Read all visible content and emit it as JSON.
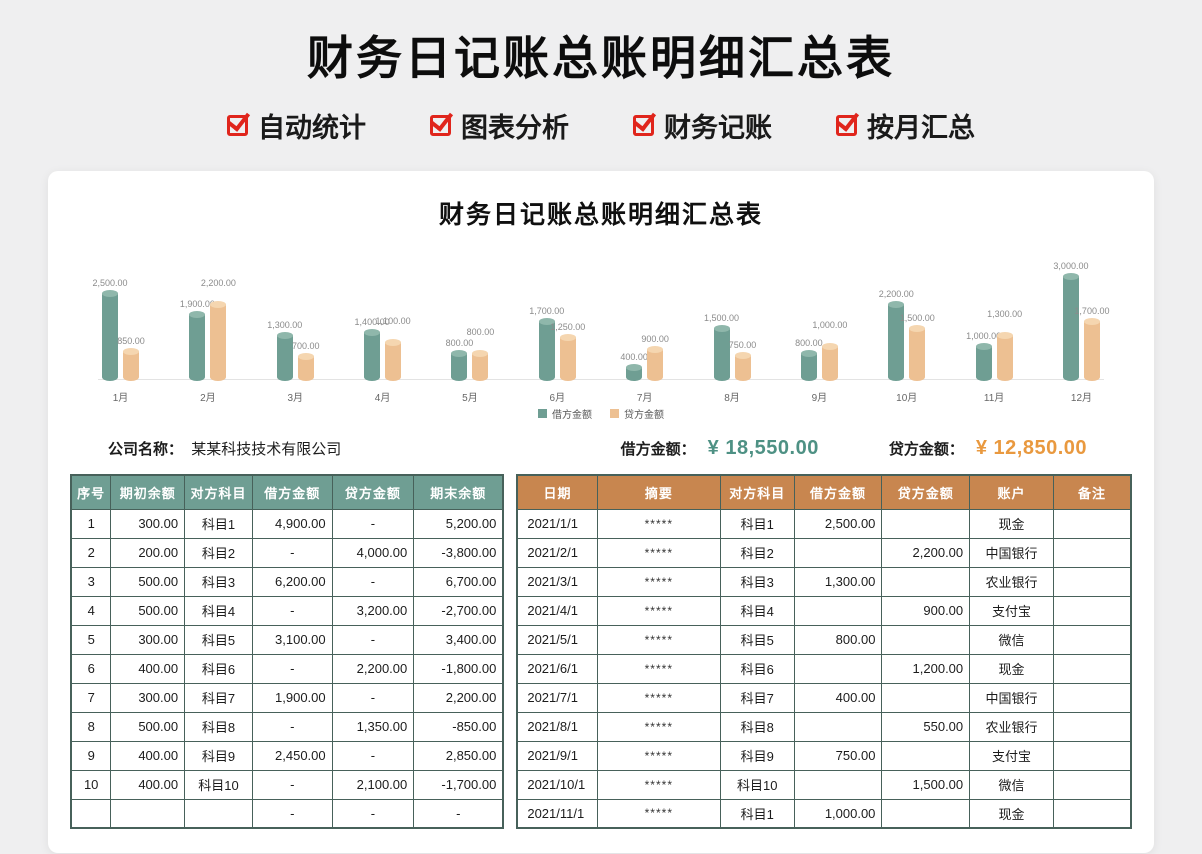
{
  "page": {
    "title": "财务日记账总账明细汇总表",
    "features": [
      {
        "label": "自动统计"
      },
      {
        "label": "图表分析"
      },
      {
        "label": "财务记账"
      },
      {
        "label": "按月汇总"
      }
    ]
  },
  "card": {
    "title": "财务日记账总账明细汇总表",
    "company": {
      "label": "公司名称：",
      "name": "某某科技技术有限公司"
    },
    "totals": {
      "debit_label": "借方金额：",
      "debit_value": "¥ 18,550.00",
      "debit_color": "#4e9184",
      "credit_label": "贷方金额：",
      "credit_value": "¥ 12,850.00",
      "credit_color": "#e9993f"
    }
  },
  "chart_data": {
    "type": "bar",
    "title": "",
    "xlabel": "",
    "ylabel": "",
    "categories": [
      "1月",
      "2月",
      "3月",
      "4月",
      "5月",
      "6月",
      "7月",
      "8月",
      "9月",
      "10月",
      "11月",
      "12月"
    ],
    "series": [
      {
        "name": "借方金额",
        "color": "#6f9e93",
        "cap_color": "#8fb7ab",
        "values": [
          2500,
          1900,
          1300,
          1400,
          800,
          1700,
          400,
          1500,
          800,
          2200,
          1000,
          3000
        ]
      },
      {
        "name": "贷方金额",
        "color": "#edc092",
        "cap_color": "#f5d6b0",
        "values": [
          850,
          2200,
          700,
          1100,
          800,
          1250,
          900,
          750,
          1000,
          1500,
          1300,
          1700
        ]
      }
    ],
    "ylim": [
      0,
      3000
    ],
    "grid": false,
    "legend_position": "bottom",
    "value_label_format": "#,##0.00"
  },
  "left_table": {
    "headers": [
      "序号",
      "期初余额",
      "对方科目",
      "借方金额",
      "贷方金额",
      "期末余额"
    ],
    "rows": [
      [
        "1",
        "300.00",
        "科目1",
        "4,900.00",
        "-",
        "5,200.00"
      ],
      [
        "2",
        "200.00",
        "科目2",
        "-",
        "4,000.00",
        "-3,800.00"
      ],
      [
        "3",
        "500.00",
        "科目3",
        "6,200.00",
        "-",
        "6,700.00"
      ],
      [
        "4",
        "500.00",
        "科目4",
        "-",
        "3,200.00",
        "-2,700.00"
      ],
      [
        "5",
        "300.00",
        "科目5",
        "3,100.00",
        "-",
        "3,400.00"
      ],
      [
        "6",
        "400.00",
        "科目6",
        "-",
        "2,200.00",
        "-1,800.00"
      ],
      [
        "7",
        "300.00",
        "科目7",
        "1,900.00",
        "-",
        "2,200.00"
      ],
      [
        "8",
        "500.00",
        "科目8",
        "-",
        "1,350.00",
        "-850.00"
      ],
      [
        "9",
        "400.00",
        "科目9",
        "2,450.00",
        "-",
        "2,850.00"
      ],
      [
        "10",
        "400.00",
        "科目10",
        "-",
        "2,100.00",
        "-1,700.00"
      ],
      [
        "",
        "",
        "",
        "-",
        "-",
        "-"
      ]
    ]
  },
  "right_table": {
    "headers": [
      "日期",
      "摘要",
      "对方科目",
      "借方金额",
      "贷方金额",
      "账户",
      "备注"
    ],
    "rows": [
      [
        "2021/1/1",
        "*****",
        "科目1",
        "2,500.00",
        "",
        "现金",
        ""
      ],
      [
        "2021/2/1",
        "*****",
        "科目2",
        "",
        "2,200.00",
        "中国银行",
        ""
      ],
      [
        "2021/3/1",
        "*****",
        "科目3",
        "1,300.00",
        "",
        "农业银行",
        ""
      ],
      [
        "2021/4/1",
        "*****",
        "科目4",
        "",
        "900.00",
        "支付宝",
        ""
      ],
      [
        "2021/5/1",
        "*****",
        "科目5",
        "800.00",
        "",
        "微信",
        ""
      ],
      [
        "2021/6/1",
        "*****",
        "科目6",
        "",
        "1,200.00",
        "现金",
        ""
      ],
      [
        "2021/7/1",
        "*****",
        "科目7",
        "400.00",
        "",
        "中国银行",
        ""
      ],
      [
        "2021/8/1",
        "*****",
        "科目8",
        "",
        "550.00",
        "农业银行",
        ""
      ],
      [
        "2021/9/1",
        "*****",
        "科目9",
        "750.00",
        "",
        "支付宝",
        ""
      ],
      [
        "2021/10/1",
        "*****",
        "科目10",
        "",
        "1,500.00",
        "微信",
        ""
      ],
      [
        "2021/11/1",
        "*****",
        "科目1",
        "1,000.00",
        "",
        "现金",
        ""
      ]
    ]
  }
}
